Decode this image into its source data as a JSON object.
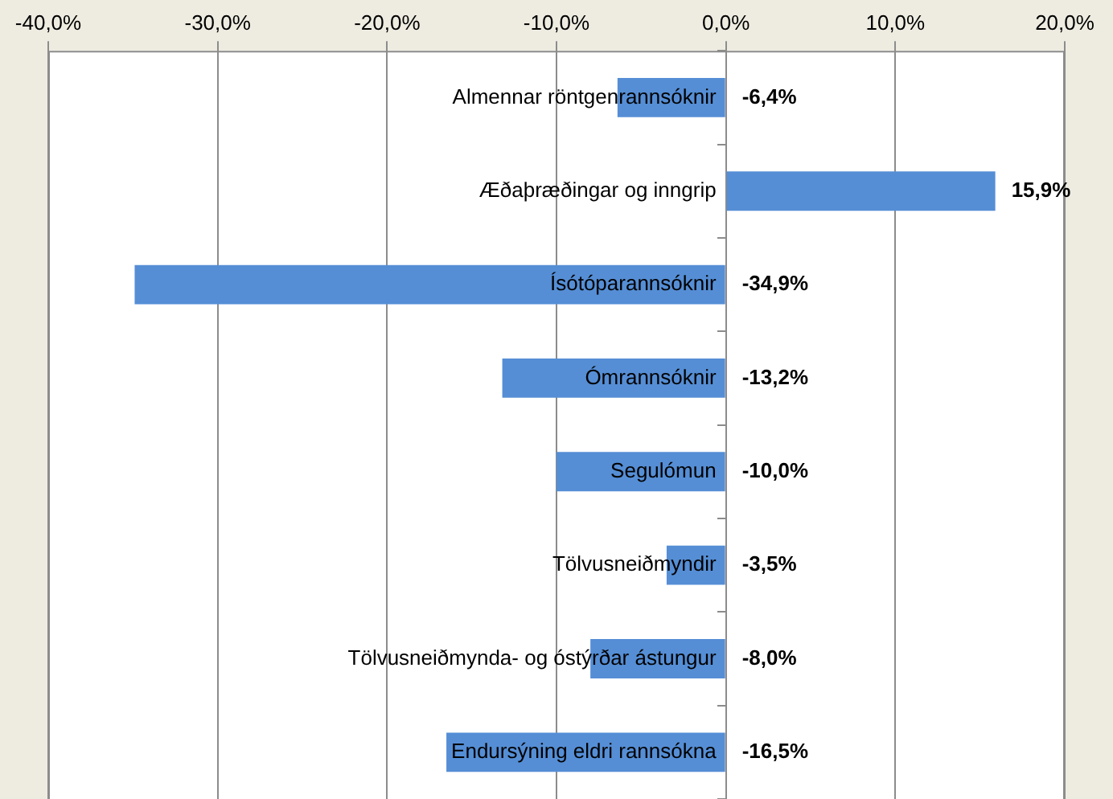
{
  "chart_data": {
    "type": "bar",
    "orientation": "horizontal",
    "categories": [
      "Almennar röntgenrannsóknir",
      "Æðaþræðingar og inngrip",
      "Ísótóparannsóknir",
      "Ómrannsóknir",
      "Segulómun",
      "Tölvusneiðmyndir",
      "Tölvusneiðmynda- og óstýrðar ástungur",
      "Endursýning eldri rannsókna"
    ],
    "values": [
      -6.4,
      15.9,
      -34.9,
      -13.2,
      -10.0,
      -3.5,
      -8.0,
      -16.5
    ],
    "value_labels": [
      "-6,4%",
      "15,9%",
      "-34,9%",
      "-13,2%",
      "-10,0%",
      "-3,5%",
      "-8,0%",
      "-16,5%"
    ],
    "color": "#558ed5",
    "xlim": [
      -40,
      20
    ],
    "xticks": [
      {
        "value": -40,
        "label": "-40,0%"
      },
      {
        "value": -30,
        "label": "-30,0%"
      },
      {
        "value": -20,
        "label": "-20,0%"
      },
      {
        "value": -10,
        "label": "-10,0%"
      },
      {
        "value": 0,
        "label": "0,0%"
      },
      {
        "value": 10,
        "label": "10,0%"
      },
      {
        "value": 20,
        "label": "20,0%"
      }
    ],
    "grid": "x",
    "legend": false
  }
}
